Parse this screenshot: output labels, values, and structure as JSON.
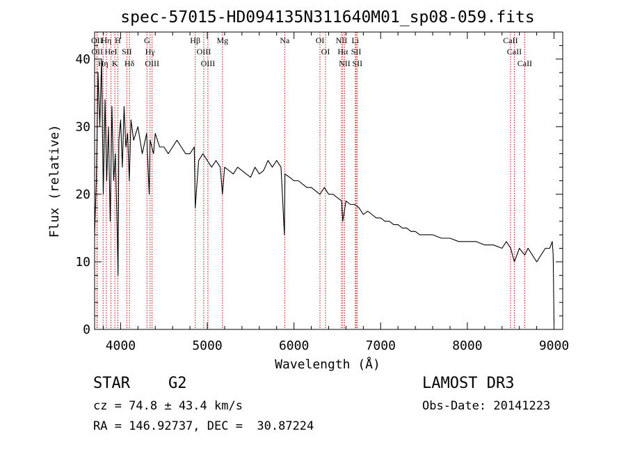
{
  "chart_data": {
    "type": "line",
    "title": "spec-57015-HD094135N311640M01_sp08-059.fits",
    "xlabel": "Wavelength (Å)",
    "ylabel": "Flux (relative)",
    "xlim": [
      3700,
      9100
    ],
    "ylim": [
      0,
      44
    ],
    "xticks": [
      4000,
      5000,
      6000,
      7000,
      8000,
      9000
    ],
    "yticks": [
      0,
      10,
      20,
      30,
      40
    ],
    "line_color": "#000000",
    "marker_color": "#cc0000",
    "series": [
      {
        "name": "spectrum",
        "x": [
          3700,
          3720,
          3740,
          3760,
          3780,
          3800,
          3820,
          3840,
          3860,
          3880,
          3900,
          3920,
          3940,
          3960,
          3970,
          3980,
          4000,
          4020,
          4040,
          4060,
          4080,
          4100,
          4120,
          4150,
          4200,
          4250,
          4300,
          4330,
          4340,
          4380,
          4400,
          4450,
          4500,
          4550,
          4600,
          4650,
          4700,
          4750,
          4800,
          4850,
          4861,
          4900,
          4950,
          5000,
          5050,
          5100,
          5150,
          5175,
          5200,
          5250,
          5300,
          5350,
          5400,
          5450,
          5500,
          5550,
          5600,
          5650,
          5700,
          5750,
          5800,
          5850,
          5890,
          5896,
          5950,
          6000,
          6050,
          6100,
          6150,
          6200,
          6250,
          6300,
          6350,
          6400,
          6450,
          6500,
          6550,
          6563,
          6600,
          6650,
          6700,
          6750,
          6800,
          6850,
          6900,
          6950,
          7000,
          7050,
          7100,
          7150,
          7200,
          7250,
          7300,
          7350,
          7400,
          7450,
          7500,
          7600,
          7700,
          7800,
          7900,
          8000,
          8100,
          8200,
          8300,
          8400,
          8450,
          8500,
          8542,
          8600,
          8662,
          8700,
          8750,
          8800,
          8850,
          8900,
          8950,
          8980,
          8990,
          9000
        ],
        "y": [
          14,
          22,
          38,
          30,
          40,
          20,
          34,
          22,
          30,
          16,
          33,
          22,
          26,
          15,
          8,
          28,
          31,
          24,
          33,
          27,
          29,
          22,
          31,
          28,
          30,
          26,
          29,
          20,
          28,
          26,
          29,
          27,
          27,
          26,
          27,
          28,
          27,
          26,
          26,
          27,
          18,
          25,
          26,
          25,
          24,
          25,
          24,
          20,
          24,
          23.5,
          23,
          24,
          23.5,
          23,
          22.5,
          24,
          23,
          23.5,
          25,
          24,
          25,
          24,
          14,
          23,
          22.5,
          22,
          22,
          21.5,
          21,
          21,
          20.5,
          20,
          21,
          20,
          20,
          19.5,
          19,
          16,
          19,
          18.5,
          18.5,
          18,
          17,
          17.5,
          17,
          16.5,
          16.5,
          16,
          16,
          15.5,
          15.5,
          15,
          15,
          14.5,
          14.5,
          14,
          14,
          14,
          13.5,
          13.5,
          13,
          13,
          13,
          12.5,
          12.5,
          12,
          13,
          12,
          10,
          12,
          11,
          12,
          11,
          10,
          11,
          12,
          12,
          13,
          11,
          1
        ]
      }
    ],
    "line_markers": [
      {
        "wavelength": 3727,
        "label": "OII"
      },
      {
        "wavelength": 3730,
        "label": "OII"
      },
      {
        "wavelength": 3798,
        "label": "Hη"
      },
      {
        "wavelength": 3835,
        "label": "Hη"
      },
      {
        "wavelength": 3889,
        "label": "HeI"
      },
      {
        "wavelength": 3934,
        "label": "K"
      },
      {
        "wavelength": 3968,
        "label": "H"
      },
      {
        "wavelength": 4072,
        "label": "SII"
      },
      {
        "wavelength": 4102,
        "label": "Hδ"
      },
      {
        "wavelength": 4304,
        "label": "G"
      },
      {
        "wavelength": 4340,
        "label": "Hγ"
      },
      {
        "wavelength": 4363,
        "label": "OIII"
      },
      {
        "wavelength": 4861,
        "label": "Hβ"
      },
      {
        "wavelength": 4959,
        "label": "OIII"
      },
      {
        "wavelength": 5007,
        "label": "OIII"
      },
      {
        "wavelength": 5175,
        "label": "Mg"
      },
      {
        "wavelength": 5893,
        "label": "Na"
      },
      {
        "wavelength": 6300,
        "label": "OI"
      },
      {
        "wavelength": 6364,
        "label": "OI"
      },
      {
        "wavelength": 6548,
        "label": "NII"
      },
      {
        "wavelength": 6563,
        "label": "Hα"
      },
      {
        "wavelength": 6584,
        "label": "NII"
      },
      {
        "wavelength": 6708,
        "label": "Li"
      },
      {
        "wavelength": 6717,
        "label": "SII"
      },
      {
        "wavelength": 6731,
        "label": "SII"
      },
      {
        "wavelength": 8498,
        "label": "CaII"
      },
      {
        "wavelength": 8542,
        "label": "CaII"
      },
      {
        "wavelength": 8662,
        "label": "CaII"
      }
    ]
  },
  "info": {
    "class_label": "STAR",
    "subclass_label": "G2",
    "cz_text": "cz = 74.8 ± 43.4 km/s",
    "coords_text": "RA = 146.92737, DEC =  30.87224",
    "survey_label": "LAMOST DR3",
    "obs_date_text": "Obs-Date: 20141223"
  }
}
